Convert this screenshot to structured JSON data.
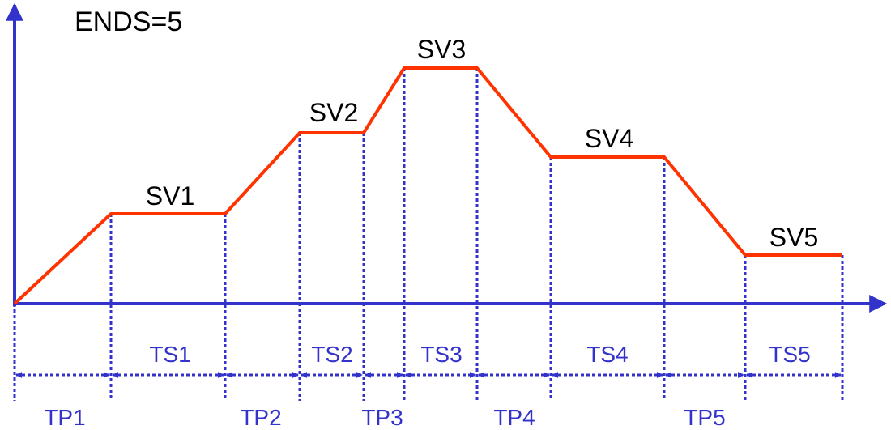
{
  "title": "ENDS=5",
  "setpoints": [
    "SV1",
    "SV2",
    "SV3",
    "SV4",
    "SV5"
  ],
  "soak_times": [
    "TS1",
    "TS2",
    "TS3",
    "TS4",
    "TS5"
  ],
  "ramp_times": [
    "TP1",
    "TP2",
    "TP3",
    "TP4",
    "TP5"
  ]
}
